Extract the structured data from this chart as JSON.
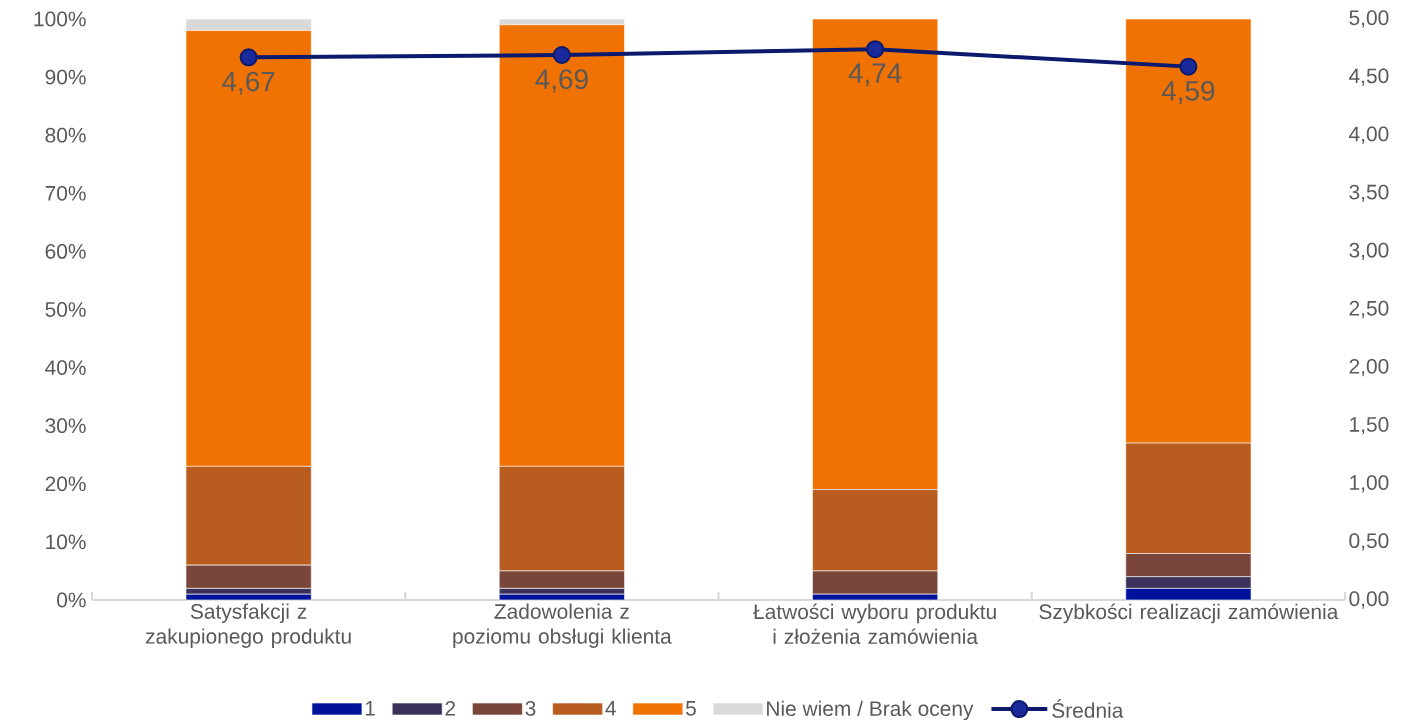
{
  "chart_data": {
    "type": "bar",
    "stacked": true,
    "legend": "bottom",
    "categories": [
      "Satysfakcji z zakupionego produktu",
      "Zadowolenia z poziomu obsługi klienta",
      "Łatwości wyboru produktu i złożenia zamówienia",
      "Szybkości realizacji zamówienia"
    ],
    "ylim": [
      0,
      100
    ],
    "yticks": [
      {
        "value": 0,
        "label": "0%"
      },
      {
        "value": 10,
        "label": "10%"
      },
      {
        "value": 20,
        "label": "20%"
      },
      {
        "value": 30,
        "label": "30%"
      },
      {
        "value": 40,
        "label": "40%"
      },
      {
        "value": 50,
        "label": "50%"
      },
      {
        "value": 60,
        "label": "60%"
      },
      {
        "value": 70,
        "label": "70%"
      },
      {
        "value": 80,
        "label": "80%"
      },
      {
        "value": 90,
        "label": "90%"
      },
      {
        "value": 100,
        "label": "100%"
      }
    ],
    "y2lim": [
      0,
      5
    ],
    "y2ticks": [
      {
        "value": 0,
        "label": "0,00"
      },
      {
        "value": 0.5,
        "label": "0,50"
      },
      {
        "value": 1,
        "label": "1,00"
      },
      {
        "value": 1.5,
        "label": "1,50"
      },
      {
        "value": 2,
        "label": "2,00"
      },
      {
        "value": 2.5,
        "label": "2,50"
      },
      {
        "value": 3,
        "label": "3,00"
      },
      {
        "value": 3.5,
        "label": "3,50"
      },
      {
        "value": 4,
        "label": "4,00"
      },
      {
        "value": 4.5,
        "label": "4,50"
      },
      {
        "value": 5,
        "label": "5,00"
      }
    ],
    "series": [
      {
        "name": "1",
        "color": "#00129a",
        "values": [
          1,
          1,
          1,
          2
        ]
      },
      {
        "name": "2",
        "color": "#3b3057",
        "values": [
          1,
          1,
          0,
          2
        ]
      },
      {
        "name": "3",
        "color": "#7a463a",
        "values": [
          4,
          3,
          4,
          4
        ]
      },
      {
        "name": "4",
        "color": "#b85c1f",
        "values": [
          17,
          18,
          14,
          19
        ]
      },
      {
        "name": "5",
        "color": "#f07202",
        "values": [
          75,
          76,
          81,
          73
        ]
      },
      {
        "name": "Nie wiem / Brak oceny",
        "color": "#d9d9d9",
        "values": [
          2,
          1,
          0,
          0
        ]
      },
      {
        "name": "Średnia",
        "type": "line",
        "axis": "y2",
        "marker": "circle",
        "color": "#0c1a6e",
        "values": [
          4.67,
          4.69,
          4.74,
          4.59
        ],
        "value_labels": [
          "4,67",
          "4,69",
          "4,74",
          "4,59"
        ]
      }
    ]
  }
}
